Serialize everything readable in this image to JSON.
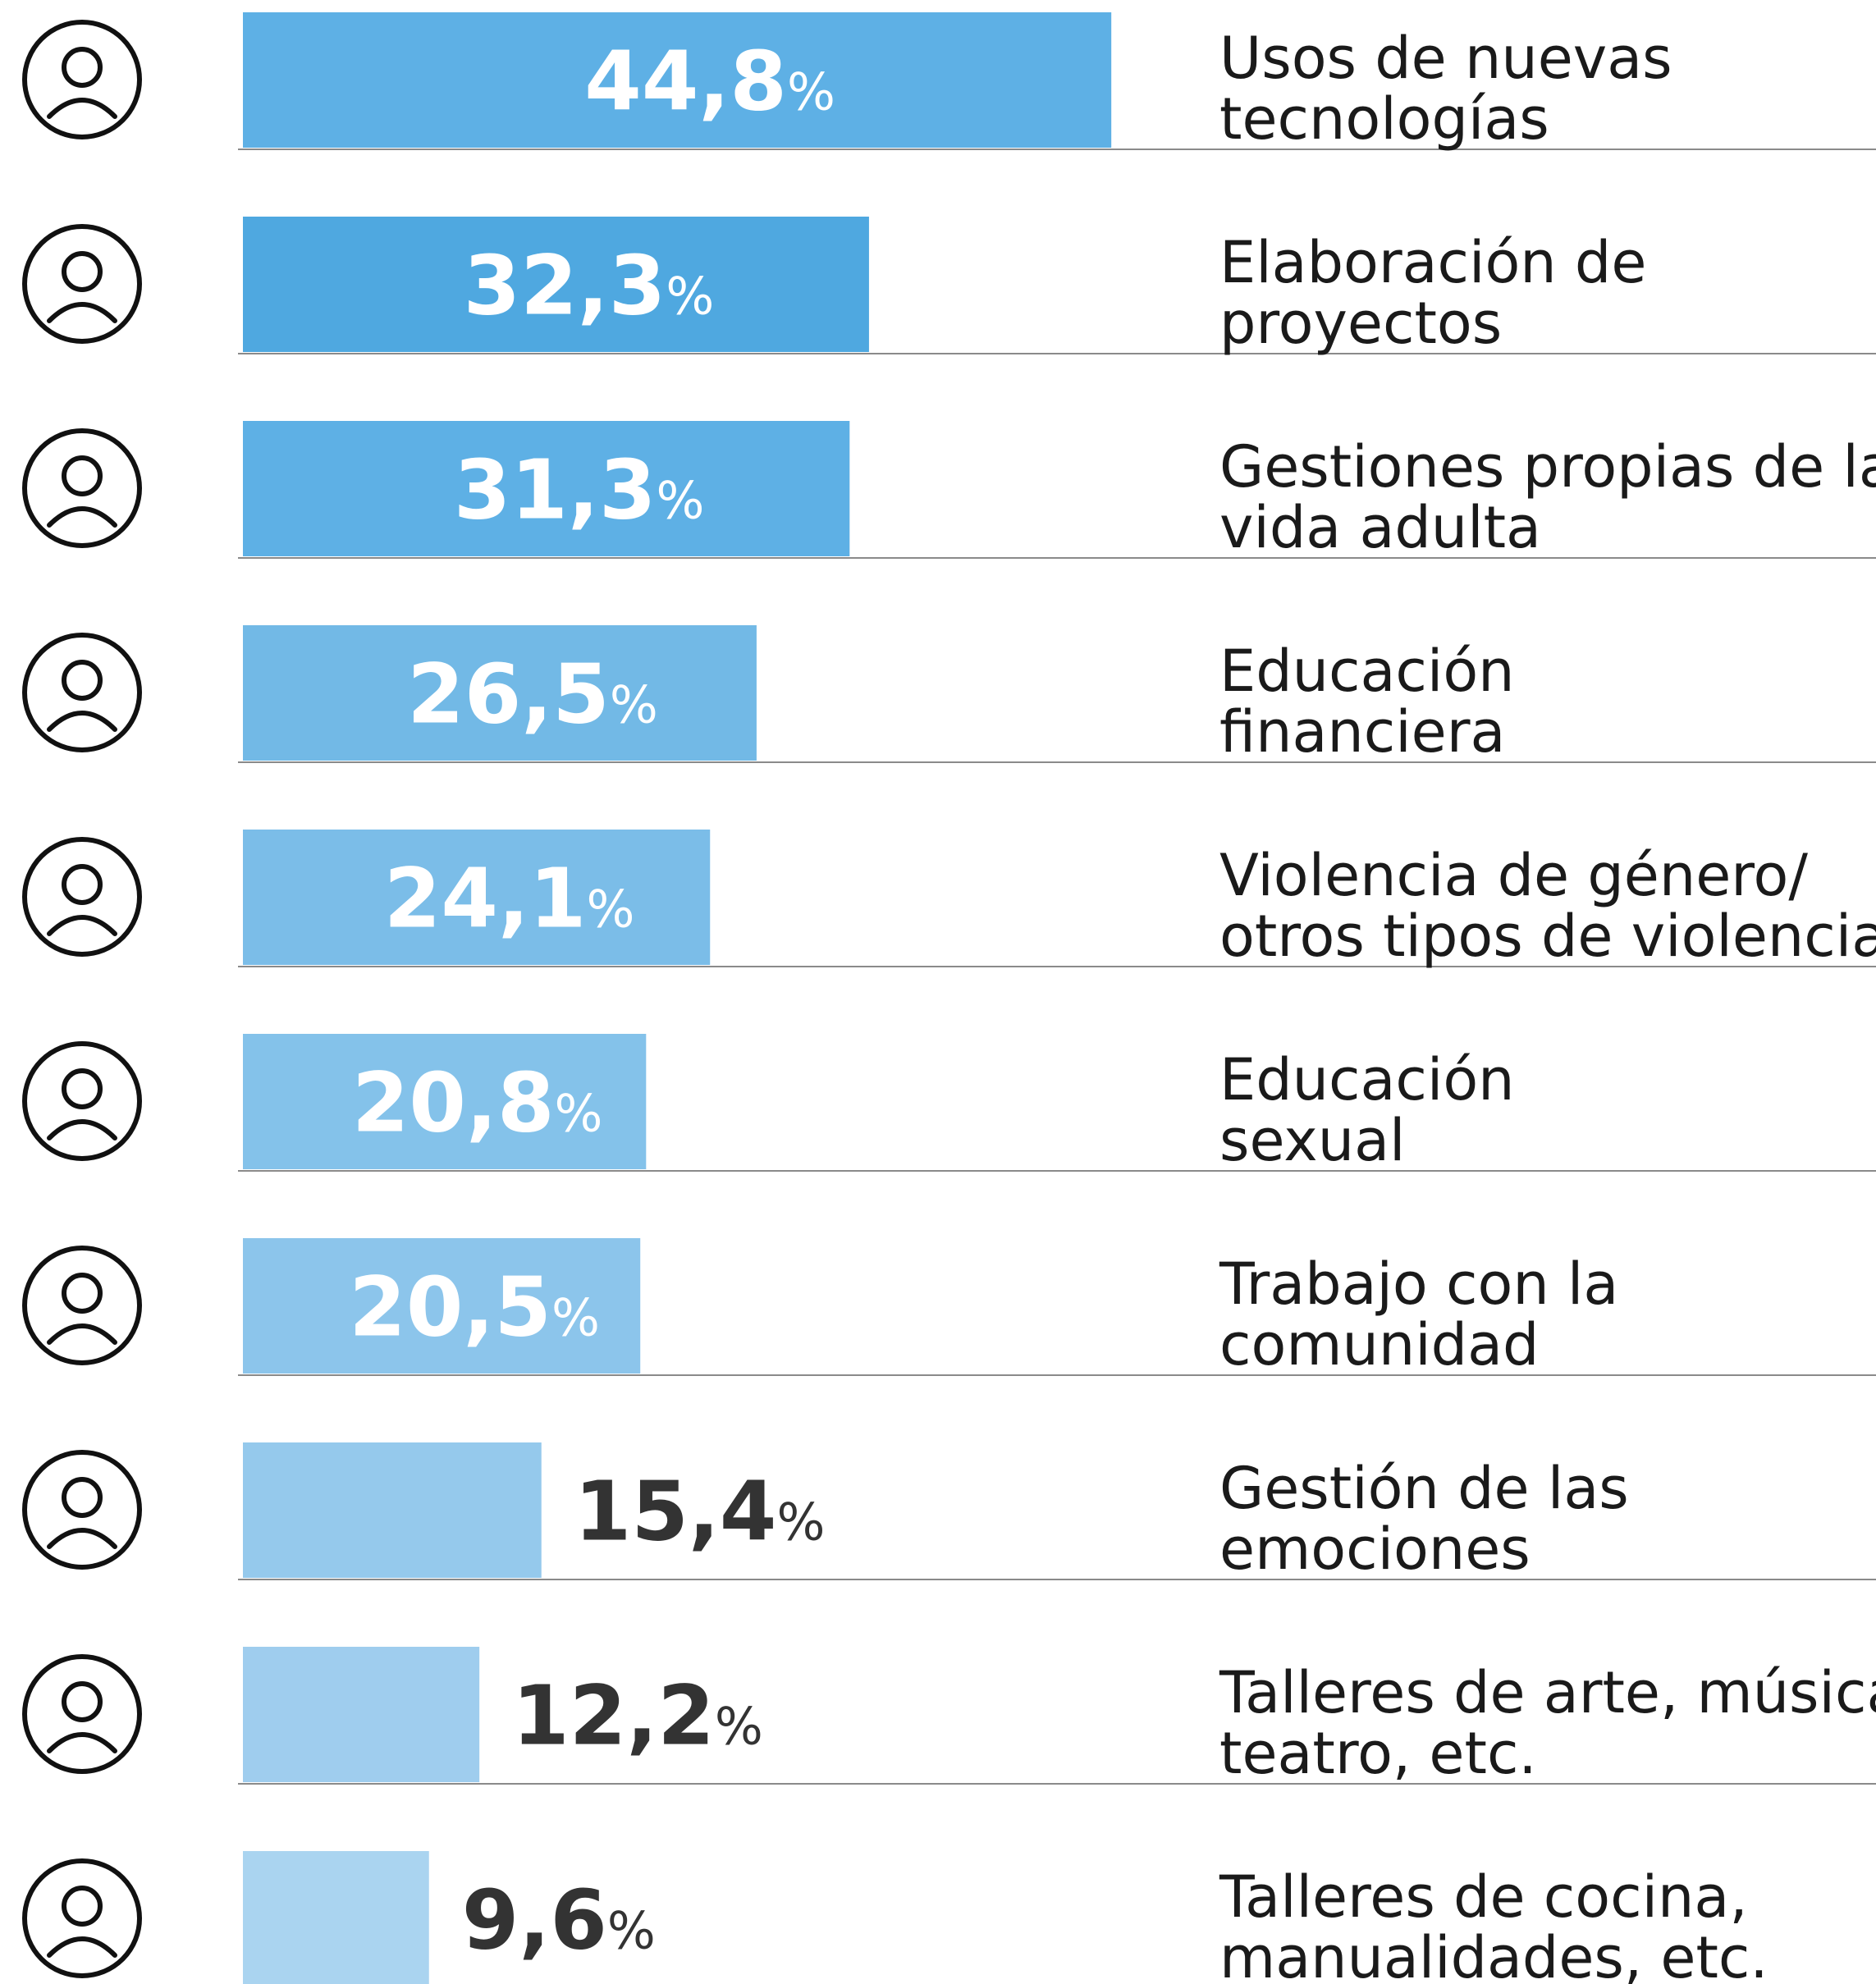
{
  "chart_data": {
    "type": "bar",
    "orientation": "horizontal",
    "categories": [
      "Usos de nuevas\ntecnologías",
      "Elaboración de\nproyectos",
      "Gestiones propias de la\nvida adulta",
      "Educación\nfinanciera",
      "Violencia de género/\notros tipos de violencia",
      "Educación\nsexual",
      "Trabajo con la\ncomunidad",
      "Gestión de las\nemociones",
      "Talleres de arte, música,\nteatro, etc.",
      "Talleres de cocina,\nmanualidades, etc."
    ],
    "values": [
      44.8,
      32.3,
      31.3,
      26.5,
      24.1,
      20.8,
      20.5,
      15.4,
      12.2,
      9.6
    ],
    "value_labels": [
      "44,8%",
      "32,3%",
      "31,3%",
      "26,5%",
      "24,1%",
      "20,8%",
      "20,5%",
      "15,4%",
      "12,2%",
      "9,6%"
    ],
    "colors": [
      "#5eb0e5",
      "#4fa8e0",
      "#5eb0e5",
      "#72b9e6",
      "#7bbde8",
      "#84c2ea",
      "#8cc5eb",
      "#95c9ec",
      "#9fcdee",
      "#aad4f0"
    ]
  }
}
